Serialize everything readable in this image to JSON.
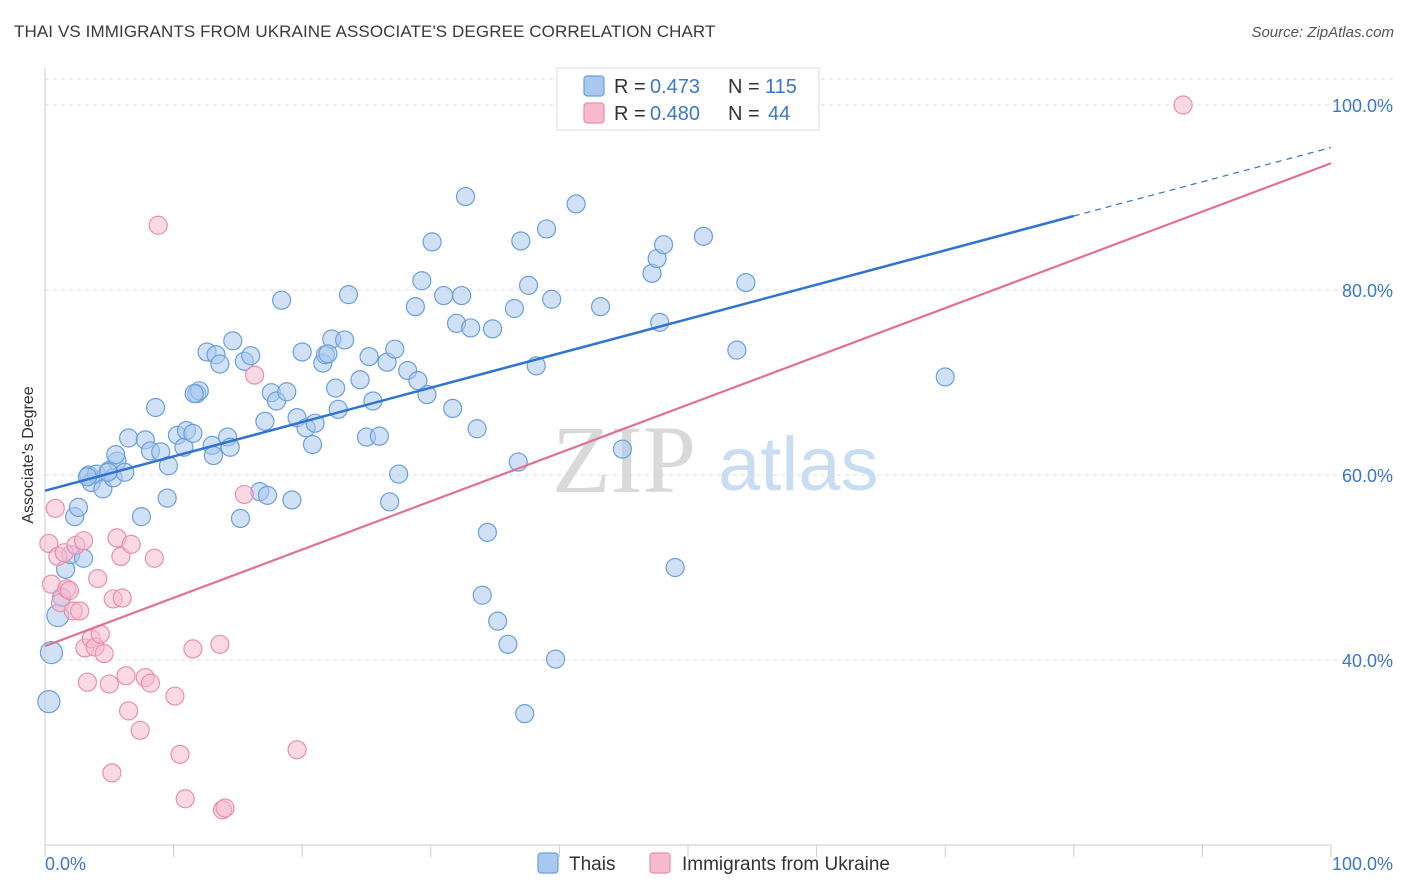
{
  "title": "THAI VS IMMIGRANTS FROM UKRAINE ASSOCIATE'S DEGREE CORRELATION CHART",
  "source": "Source: ZipAtlas.com",
  "watermark": {
    "zip": "ZIP",
    "atlas": "atlas"
  },
  "colors": {
    "thai_fill": "#a9c8ef",
    "thai_stroke": "#6a9fdb",
    "thai_line": "#2f74d0",
    "ukr_fill": "#f7b9cd",
    "ukr_stroke": "#e88fad",
    "ukr_line": "#e07196",
    "grid": "#dddddd",
    "axis_text": "#3b78c6"
  },
  "legend": {
    "r_label": "R =",
    "n_label": "N =",
    "thai": {
      "r": "0.473",
      "n": "115"
    },
    "ukr": {
      "r": "0.480",
      "n": "44"
    }
  },
  "bottom_legend": {
    "thai": "Thais",
    "ukr": "Immigrants from Ukraine"
  },
  "chart_data": {
    "type": "scatter",
    "title": "THAI VS IMMIGRANTS FROM UKRAINE ASSOCIATE'S DEGREE CORRELATION CHART",
    "xlabel": "",
    "ylabel": "Associate's Degree",
    "xlim": [
      0,
      100
    ],
    "ylim": [
      20,
      104
    ],
    "x_tick_labels": [
      "0.0%",
      "100.0%"
    ],
    "y_ticks": [
      40,
      60,
      80,
      100
    ],
    "y_tick_labels": [
      "40.0%",
      "60.0%",
      "80.0%",
      "100.0%"
    ],
    "grid": true,
    "legend_position": "top-center",
    "series": [
      {
        "name": "Thais",
        "r": 0.473,
        "n": 115,
        "trend": {
          "x0": 0,
          "y0": 58.3,
          "x1": 80,
          "y1": 88.0,
          "dashed_to_x": 100,
          "dashed_to_y": 95.4
        },
        "points": [
          [
            0.3,
            35.5
          ],
          [
            0.5,
            40.8
          ],
          [
            1.0,
            44.8
          ],
          [
            1.3,
            46.8
          ],
          [
            1.6,
            49.8
          ],
          [
            2.0,
            51.4
          ],
          [
            3.0,
            51.0
          ],
          [
            2.3,
            55.5
          ],
          [
            2.6,
            56.5
          ],
          [
            3.4,
            60.0
          ],
          [
            3.6,
            59.2
          ],
          [
            4.0,
            60.1
          ],
          [
            4.5,
            58.5
          ],
          [
            5.0,
            60.5
          ],
          [
            5.3,
            59.7
          ],
          [
            5.6,
            61.5
          ],
          [
            6.2,
            60.3
          ],
          [
            5.5,
            62.2
          ],
          [
            6.5,
            64.0
          ],
          [
            7.5,
            55.5
          ],
          [
            7.8,
            63.8
          ],
          [
            8.2,
            62.6
          ],
          [
            8.6,
            67.3
          ],
          [
            9.0,
            62.5
          ],
          [
            9.5,
            57.5
          ],
          [
            9.6,
            61.0
          ],
          [
            10.3,
            64.3
          ],
          [
            10.8,
            63.0
          ],
          [
            11.0,
            64.8
          ],
          [
            11.5,
            64.5
          ],
          [
            11.8,
            68.8
          ],
          [
            12.0,
            69.1
          ],
          [
            12.6,
            73.3
          ],
          [
            13.0,
            63.2
          ],
          [
            13.1,
            62.1
          ],
          [
            13.3,
            73.0
          ],
          [
            13.6,
            72.0
          ],
          [
            14.2,
            64.1
          ],
          [
            14.4,
            63.0
          ],
          [
            14.6,
            74.5
          ],
          [
            15.2,
            55.3
          ],
          [
            15.5,
            72.3
          ],
          [
            16.0,
            72.9
          ],
          [
            16.7,
            58.2
          ],
          [
            17.1,
            65.8
          ],
          [
            17.6,
            68.9
          ],
          [
            18.0,
            68.0
          ],
          [
            18.4,
            78.9
          ],
          [
            18.8,
            69.0
          ],
          [
            19.2,
            57.3
          ],
          [
            19.6,
            66.2
          ],
          [
            20.0,
            73.3
          ],
          [
            20.3,
            65.1
          ],
          [
            20.8,
            63.3
          ],
          [
            21.0,
            65.6
          ],
          [
            21.6,
            72.1
          ],
          [
            21.8,
            73.0
          ],
          [
            22.3,
            74.7
          ],
          [
            22.6,
            69.4
          ],
          [
            22.8,
            67.1
          ],
          [
            23.3,
            74.6
          ],
          [
            23.6,
            79.5
          ],
          [
            24.5,
            70.3
          ],
          [
            25.0,
            64.1
          ],
          [
            25.2,
            72.8
          ],
          [
            25.5,
            68.0
          ],
          [
            26.0,
            64.2
          ],
          [
            26.6,
            72.2
          ],
          [
            26.8,
            57.1
          ],
          [
            27.2,
            73.6
          ],
          [
            27.5,
            60.1
          ],
          [
            28.2,
            71.3
          ],
          [
            28.8,
            78.2
          ],
          [
            29.3,
            81.0
          ],
          [
            29.7,
            68.7
          ],
          [
            30.1,
            85.2
          ],
          [
            31.0,
            79.4
          ],
          [
            31.7,
            67.2
          ],
          [
            32.0,
            76.4
          ],
          [
            32.4,
            79.4
          ],
          [
            32.7,
            90.1
          ],
          [
            33.1,
            75.9
          ],
          [
            33.6,
            65.0
          ],
          [
            34.0,
            47.0
          ],
          [
            34.4,
            53.8
          ],
          [
            34.8,
            75.8
          ],
          [
            35.2,
            44.2
          ],
          [
            36.0,
            41.7
          ],
          [
            36.5,
            78.0
          ],
          [
            36.8,
            61.4
          ],
          [
            37.0,
            85.3
          ],
          [
            37.3,
            34.2
          ],
          [
            37.6,
            80.5
          ],
          [
            38.2,
            71.8
          ],
          [
            39.0,
            86.6
          ],
          [
            39.4,
            79.0
          ],
          [
            39.7,
            40.1
          ],
          [
            41.3,
            89.3
          ],
          [
            43.2,
            78.2
          ],
          [
            44.9,
            62.8
          ],
          [
            47.2,
            81.8
          ],
          [
            47.6,
            83.4
          ],
          [
            47.8,
            76.5
          ],
          [
            48.1,
            84.9
          ],
          [
            49.0,
            50.0
          ],
          [
            51.2,
            85.8
          ],
          [
            53.8,
            73.5
          ],
          [
            54.5,
            80.8
          ],
          [
            70.0,
            70.6
          ],
          [
            11.6,
            68.8
          ],
          [
            4.9,
            60.3
          ],
          [
            22.0,
            73.1
          ],
          [
            29.0,
            70.2
          ],
          [
            3.3,
            59.8
          ],
          [
            17.3,
            57.8
          ]
        ]
      },
      {
        "name": "Immigrants from Ukraine",
        "r": 0.48,
        "n": 44,
        "trend": {
          "x0": 0,
          "y0": 41.5,
          "x1": 100,
          "y1": 93.7
        },
        "points": [
          [
            0.3,
            52.6
          ],
          [
            0.5,
            48.2
          ],
          [
            0.8,
            56.4
          ],
          [
            1.0,
            51.2
          ],
          [
            1.2,
            46.2
          ],
          [
            1.5,
            51.6
          ],
          [
            1.7,
            47.7
          ],
          [
            1.9,
            47.5
          ],
          [
            2.2,
            45.3
          ],
          [
            2.4,
            52.4
          ],
          [
            2.7,
            45.3
          ],
          [
            3.0,
            52.9
          ],
          [
            3.1,
            41.3
          ],
          [
            3.3,
            37.6
          ],
          [
            3.6,
            42.3
          ],
          [
            3.9,
            41.4
          ],
          [
            4.1,
            48.8
          ],
          [
            4.3,
            42.8
          ],
          [
            4.6,
            40.7
          ],
          [
            5.0,
            37.4
          ],
          [
            5.2,
            27.8
          ],
          [
            5.3,
            46.6
          ],
          [
            5.6,
            53.2
          ],
          [
            5.9,
            51.2
          ],
          [
            6.0,
            46.7
          ],
          [
            6.3,
            38.3
          ],
          [
            6.5,
            34.5
          ],
          [
            6.7,
            52.5
          ],
          [
            7.4,
            32.4
          ],
          [
            7.8,
            38.1
          ],
          [
            8.2,
            37.5
          ],
          [
            8.5,
            51.0
          ],
          [
            8.8,
            87.0
          ],
          [
            10.1,
            36.1
          ],
          [
            10.5,
            29.8
          ],
          [
            10.9,
            25.0
          ],
          [
            11.5,
            41.2
          ],
          [
            13.6,
            41.7
          ],
          [
            13.8,
            23.8
          ],
          [
            14.0,
            24.0
          ],
          [
            15.5,
            57.9
          ],
          [
            16.3,
            70.8
          ],
          [
            19.6,
            30.3
          ],
          [
            88.5,
            100.0
          ]
        ]
      }
    ]
  }
}
